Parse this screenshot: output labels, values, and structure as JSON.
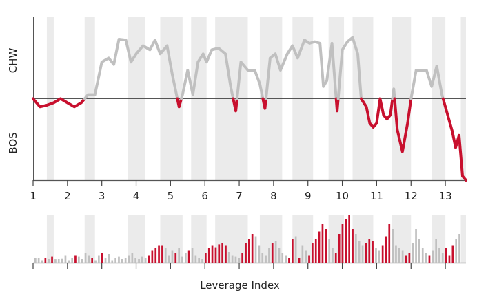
{
  "chart_data": {
    "type": "line",
    "ylabel_top": "CHW",
    "ylabel_bottom": "BOS",
    "xlabel": "Leverage Index",
    "x_ticks": [
      "1",
      "2",
      "3",
      "4",
      "5",
      "6",
      "7",
      "8",
      "9",
      "10",
      "11",
      "12",
      "13"
    ],
    "x_tick_positions": [
      1,
      2,
      3,
      4,
      5,
      6,
      7,
      8,
      9,
      10,
      11,
      12,
      13
    ],
    "xlim": [
      1,
      13.6
    ],
    "ylim": [
      -1,
      1
    ],
    "shaded_bands": [
      [
        1.4,
        1.6
      ],
      [
        2.5,
        2.8
      ],
      [
        3.75,
        4.25
      ],
      [
        4.7,
        5.35
      ],
      [
        5.6,
        6.05
      ],
      [
        6.3,
        7.25
      ],
      [
        7.6,
        8.25
      ],
      [
        8.55,
        9.15
      ],
      [
        9.6,
        10.05
      ],
      [
        10.3,
        10.9
      ],
      [
        11.45,
        12.0
      ],
      [
        12.6,
        13.0
      ],
      [
        13.45,
        13.6
      ]
    ],
    "colors": {
      "above": "#c0c0c0",
      "below": "#c8102e",
      "band": "#ebebeb",
      "axis": "#555555"
    },
    "series": [
      {
        "x": [
          1.0,
          1.2,
          1.4,
          1.6,
          1.8,
          2.0,
          2.2,
          2.4,
          2.6,
          2.8,
          3.0,
          3.2,
          3.35,
          3.5,
          3.7,
          3.85,
          4.0,
          4.2,
          4.4,
          4.55,
          4.7,
          4.9,
          5.05,
          5.25,
          5.35,
          5.5,
          5.65,
          5.8,
          5.95,
          6.05,
          6.2,
          6.4,
          6.6,
          6.75,
          6.9,
          7.05,
          7.25,
          7.45,
          7.6,
          7.75,
          7.9,
          8.05,
          8.2,
          8.4,
          8.55,
          8.7,
          8.9,
          9.05,
          9.2,
          9.35,
          9.45,
          9.55,
          9.7,
          9.85,
          10.0,
          10.15,
          10.3,
          10.45,
          10.55,
          10.7,
          10.8,
          10.9,
          11.0,
          11.1,
          11.2,
          11.3,
          11.4,
          11.5,
          11.6,
          11.75,
          11.9,
          12.0,
          12.15,
          12.3,
          12.45,
          12.6,
          12.75,
          12.9,
          13.0,
          13.1,
          13.2,
          13.3,
          13.4,
          13.5,
          13.6
        ],
        "values": [
          0.0,
          -0.1,
          -0.08,
          -0.05,
          0.0,
          -0.05,
          -0.1,
          -0.05,
          0.05,
          0.05,
          0.45,
          0.5,
          0.42,
          0.73,
          0.72,
          0.45,
          0.55,
          0.65,
          0.6,
          0.72,
          0.55,
          0.65,
          0.3,
          -0.1,
          0.05,
          0.35,
          0.05,
          0.45,
          0.55,
          0.45,
          0.6,
          0.62,
          0.55,
          0.15,
          -0.15,
          0.45,
          0.35,
          0.35,
          0.18,
          -0.12,
          0.5,
          0.55,
          0.35,
          0.55,
          0.65,
          0.5,
          0.72,
          0.68,
          0.7,
          0.68,
          0.15,
          0.22,
          0.68,
          -0.15,
          0.6,
          0.7,
          0.75,
          0.55,
          0.0,
          -0.1,
          -0.3,
          -0.35,
          -0.3,
          0.0,
          -0.2,
          -0.25,
          -0.2,
          0.12,
          -0.38,
          -0.65,
          -0.3,
          0.0,
          0.35,
          0.35,
          0.35,
          0.15,
          0.4,
          0.05,
          -0.1,
          -0.25,
          -0.4,
          -0.6,
          -0.45,
          -0.95,
          -1.0
        ]
      }
    ],
    "bars": [
      0.1,
      0.1,
      0.05,
      0.1,
      0.08,
      0.12,
      0.07,
      0.08,
      0.09,
      0.15,
      0.05,
      0.1,
      0.15,
      0.12,
      0.08,
      0.2,
      0.15,
      0.1,
      0.05,
      0.15,
      0.2,
      0.1,
      0.18,
      0.05,
      0.1,
      0.12,
      0.08,
      0.1,
      0.15,
      0.2,
      0.1,
      0.08,
      0.12,
      0.1,
      0.15,
      0.25,
      0.3,
      0.35,
      0.35,
      0.3,
      0.15,
      0.25,
      0.2,
      0.3,
      0.12,
      0.2,
      0.25,
      0.3,
      0.15,
      0.1,
      0.08,
      0.2,
      0.3,
      0.35,
      0.32,
      0.38,
      0.4,
      0.35,
      0.22,
      0.15,
      0.12,
      0.1,
      0.2,
      0.4,
      0.5,
      0.6,
      0.55,
      0.35,
      0.2,
      0.15,
      0.3,
      0.4,
      0.45,
      0.3,
      0.2,
      0.15,
      0.1,
      0.5,
      0.55,
      0.1,
      0.35,
      0.25,
      0.15,
      0.4,
      0.5,
      0.65,
      0.8,
      0.7,
      0.5,
      0.3,
      0.2,
      0.6,
      0.8,
      0.9,
      1.0,
      0.7,
      0.6,
      0.45,
      0.35,
      0.4,
      0.5,
      0.45,
      0.3,
      0.25,
      0.35,
      0.55,
      0.8,
      0.7,
      0.35,
      0.3,
      0.25,
      0.15,
      0.2,
      0.4,
      0.7,
      0.5,
      0.3,
      0.2,
      0.15,
      0.25,
      0.5,
      0.3,
      0.2,
      0.3,
      0.15,
      0.35,
      0.5,
      0.6
    ],
    "bar_highlight": [
      false,
      false,
      false,
      true,
      false,
      true,
      false,
      false,
      false,
      false,
      false,
      false,
      true,
      false,
      false,
      false,
      false,
      true,
      false,
      false,
      true,
      false,
      false,
      false,
      false,
      false,
      false,
      false,
      false,
      false,
      false,
      false,
      false,
      false,
      true,
      true,
      true,
      true,
      true,
      false,
      false,
      false,
      true,
      false,
      false,
      false,
      true,
      false,
      false,
      false,
      false,
      true,
      true,
      true,
      true,
      true,
      true,
      true,
      false,
      false,
      false,
      false,
      true,
      true,
      true,
      true,
      false,
      false,
      false,
      false,
      false,
      true,
      false,
      false,
      false,
      false,
      true,
      true,
      false,
      true,
      false,
      false,
      true,
      true,
      true,
      true,
      true,
      true,
      false,
      false,
      true,
      true,
      true,
      true,
      true,
      true,
      false,
      false,
      false,
      true,
      true,
      true,
      false,
      false,
      true,
      true,
      true,
      false,
      false,
      false,
      false,
      true,
      true,
      false,
      false,
      false,
      false,
      false,
      true,
      false,
      false,
      false,
      false,
      true,
      true,
      true
    ]
  }
}
